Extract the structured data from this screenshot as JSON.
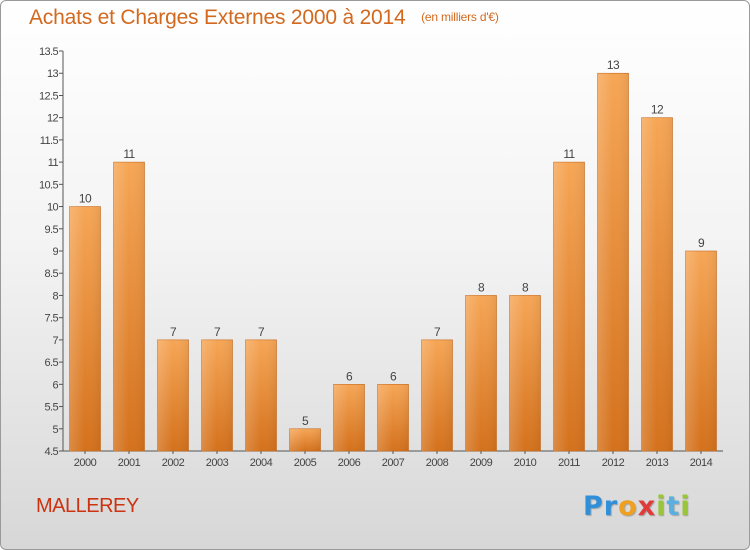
{
  "title": {
    "main": "Achats et Charges Externes 2000 à 2014",
    "unit": "(en milliers d'€)"
  },
  "town": "MALLEREY",
  "logo": {
    "letters": [
      "P",
      "r",
      "o",
      "x",
      "i",
      "t",
      "i"
    ],
    "colors": [
      "#2f8fd8",
      "#2f8fd8",
      "#f0a020",
      "#e03a3a",
      "#9ac43a",
      "#5ab0e0",
      "#9ac43a"
    ]
  },
  "colors": {
    "bar_top": "#f6a656",
    "bar_bottom": "#d4711c",
    "text": "#444444",
    "accent": "#d2691e"
  },
  "chart_data": {
    "type": "bar",
    "categories": [
      "2000",
      "2001",
      "2002",
      "2003",
      "2004",
      "2005",
      "2006",
      "2007",
      "2008",
      "2009",
      "2010",
      "2011",
      "2012",
      "2013",
      "2014"
    ],
    "values": [
      10,
      11,
      7,
      7,
      7,
      5,
      6,
      6,
      7,
      8,
      8,
      11,
      13,
      12,
      9
    ],
    "labels": [
      "10",
      "11",
      "7",
      "7",
      "7",
      "5",
      "6",
      "6",
      "7",
      "8",
      "8",
      "11",
      "13",
      "12",
      "9"
    ],
    "yticks": [
      "4.5",
      "5",
      "5.5",
      "6",
      "6.5",
      "7",
      "7.5",
      "8",
      "8.5",
      "9",
      "9.5",
      "10",
      "10.5",
      "11",
      "11.5",
      "12",
      "12.5",
      "13",
      "13.5"
    ],
    "ylim": [
      4.5,
      13.5
    ],
    "grid": false,
    "title": "Achats et Charges Externes 2000 à 2014",
    "xlabel": "",
    "ylabel": ""
  }
}
